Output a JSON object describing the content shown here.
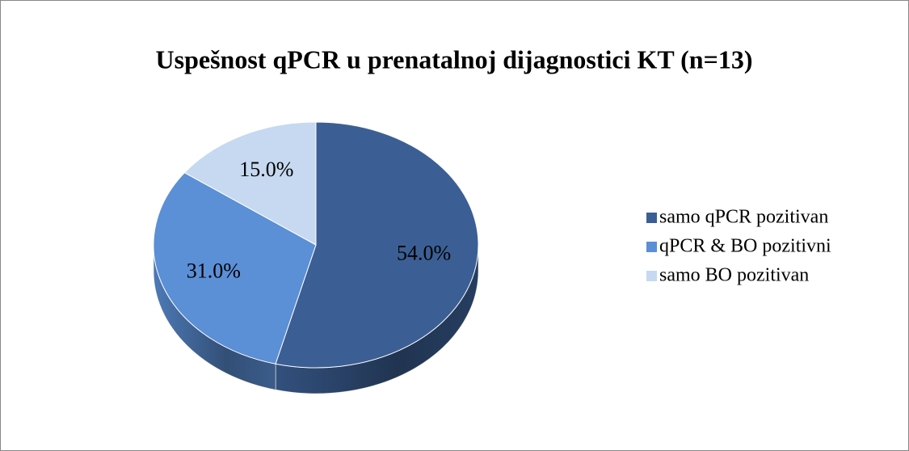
{
  "chart_data": {
    "type": "pie",
    "title": "Uspešnost qPCR u prenatalnoj dijagnostici KT (n=13)",
    "categories": [
      "samo qPCR pozitivan",
      "qPCR & BO pozitivni",
      "samo BO pozitivan"
    ],
    "values": [
      54.0,
      31.0,
      15.0
    ],
    "value_labels": [
      "54.0%",
      "31.0%",
      "15.0%"
    ],
    "colors": [
      "#3b5f94",
      "#5b8fd6",
      "#c6d9f1"
    ],
    "legend": "right"
  }
}
